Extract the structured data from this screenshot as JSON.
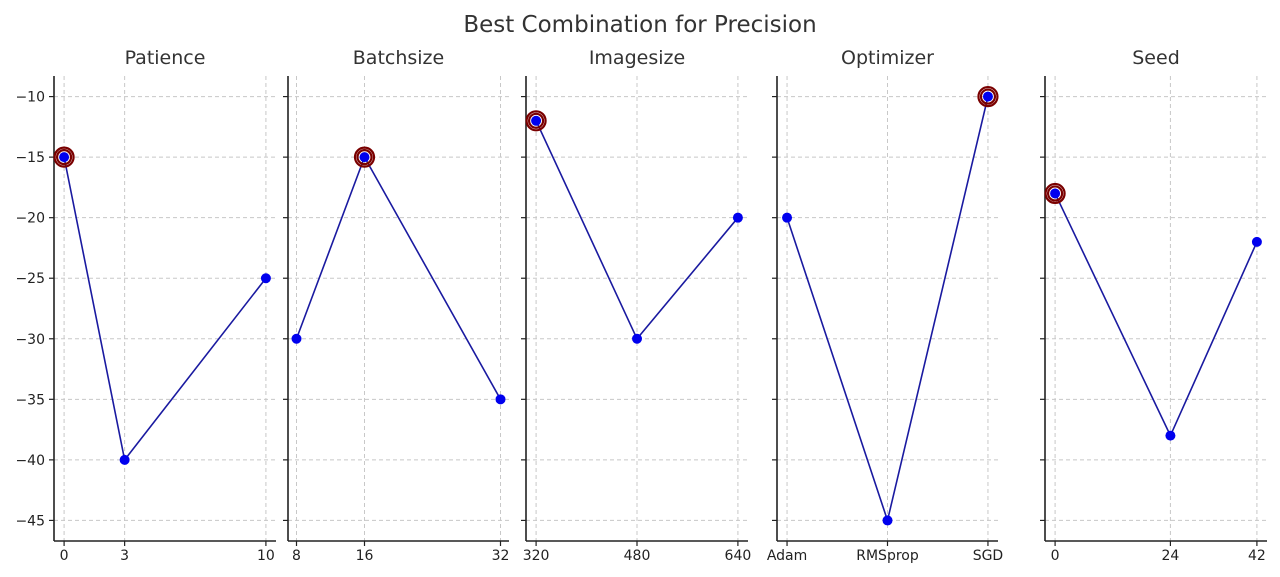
{
  "chart_data": {
    "type": "line",
    "title": "Best Combination for Precision",
    "ylim": [
      -46.7,
      -8.3
    ],
    "yticks": [
      -10,
      -15,
      -20,
      -25,
      -30,
      -35,
      -40,
      -45
    ],
    "grid": true,
    "colors": {
      "line": "#1a1aa0",
      "point": "#0000ee",
      "best_marker": "#7a0000"
    },
    "panels": [
      {
        "title": "Patience",
        "x": [
          0,
          3,
          10
        ],
        "xtick_labels": [
          "0",
          "3",
          "10"
        ],
        "xlim": [
          -0.5,
          10.5
        ],
        "values": [
          -15,
          -40,
          -25
        ],
        "best_index": 0
      },
      {
        "title": "Batchsize",
        "x": [
          8,
          16,
          32
        ],
        "xtick_labels": [
          "8",
          "16",
          "32"
        ],
        "xlim": [
          7.0,
          33.0
        ],
        "values": [
          -30,
          -15,
          -35
        ],
        "best_index": 1
      },
      {
        "title": "Imagesize",
        "x": [
          320,
          480,
          640
        ],
        "xtick_labels": [
          "320",
          "480",
          "640"
        ],
        "xlim": [
          304,
          656
        ],
        "values": [
          -12,
          -30,
          -20
        ],
        "best_index": 0
      },
      {
        "title": "Optimizer",
        "x": [
          0,
          1,
          2
        ],
        "xtick_labels": [
          "Adam",
          "RMSprop",
          "SGD"
        ],
        "xlim": [
          -0.1,
          2.1
        ],
        "values": [
          -20,
          -45,
          -10
        ],
        "best_index": 2
      },
      {
        "title": "Seed",
        "x": [
          0,
          24,
          42
        ],
        "xtick_labels": [
          "0",
          "24",
          "42"
        ],
        "xlim": [
          -2.1,
          44.1
        ],
        "values": [
          -18,
          -38,
          -22
        ],
        "best_index": 0
      }
    ]
  }
}
